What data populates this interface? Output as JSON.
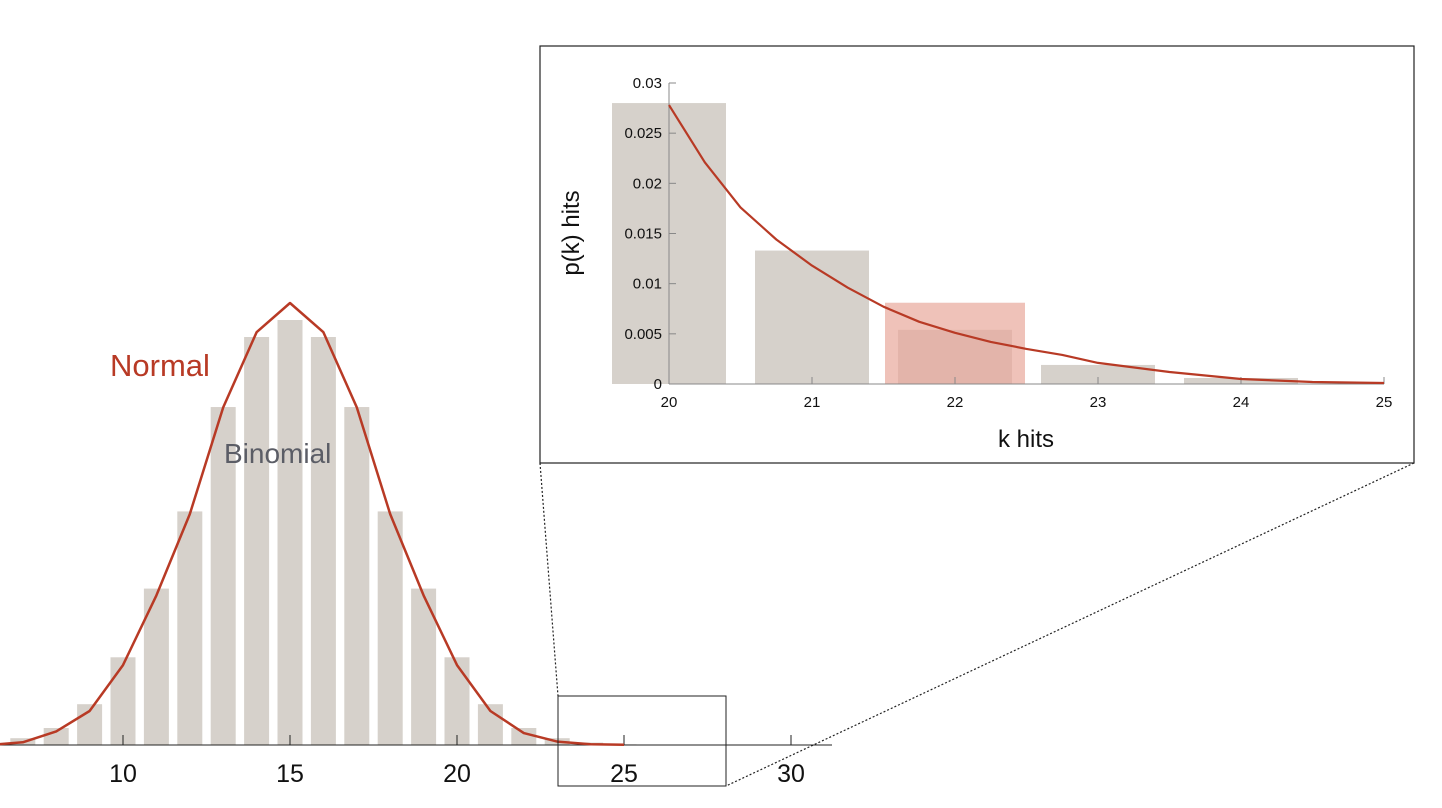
{
  "chart_data": [
    {
      "type": "bar",
      "description_role": "main",
      "x": [
        6,
        7,
        8,
        9,
        10,
        11,
        12,
        13,
        14,
        15,
        16,
        17,
        18,
        19,
        20,
        21,
        22,
        23,
        24,
        25
      ],
      "values": [
        0.0,
        0.002,
        0.005,
        0.012,
        0.0258,
        0.046,
        0.0687,
        0.0994,
        0.12,
        0.125,
        0.12,
        0.0994,
        0.0687,
        0.046,
        0.0258,
        0.012,
        0.005,
        0.002,
        0.0007,
        0.0002
      ],
      "normal_curve": [
        0.0,
        0.0008,
        0.004,
        0.01,
        0.0235,
        0.044,
        0.0679,
        0.0993,
        0.1214,
        0.13,
        0.1214,
        0.0993,
        0.0679,
        0.044,
        0.0235,
        0.01,
        0.0035,
        0.001,
        0.0002,
        0.0001
      ],
      "xticks": [
        10,
        15,
        20,
        25,
        30
      ],
      "xtick_labels": [
        "10",
        "15",
        "20",
        "25",
        "30"
      ],
      "xlim": [
        6,
        31.5
      ],
      "series": [
        {
          "name": "Binomial",
          "color": "#d6d1cb"
        },
        {
          "name": "Normal",
          "color": "#b83a25"
        }
      ],
      "labels": {
        "normal": "Normal",
        "binomial": "Binomial"
      }
    },
    {
      "type": "bar",
      "description_role": "inset",
      "x": [
        20,
        21,
        22,
        23,
        24,
        25
      ],
      "values": [
        0.028,
        0.0133,
        0.0054,
        0.0019,
        0.0006,
        0.0
      ],
      "highlight": {
        "x": 22,
        "value": 0.0081,
        "color": "#e8a89b"
      },
      "normal_curve": {
        "x": [
          20,
          20.25,
          20.5,
          20.75,
          21,
          21.25,
          21.5,
          21.75,
          22,
          22.25,
          22.5,
          22.75,
          23,
          23.5,
          24,
          24.5,
          25
        ],
        "y": [
          0.0278,
          0.0221,
          0.0176,
          0.0144,
          0.0118,
          0.0096,
          0.0077,
          0.0062,
          0.0051,
          0.0042,
          0.0035,
          0.0029,
          0.0021,
          0.0012,
          0.0005,
          0.0002,
          0.0001
        ]
      },
      "xlabel": "k hits",
      "ylabel": "p(k) hits",
      "xlim": [
        20,
        25
      ],
      "ylim": [
        0,
        0.03
      ],
      "xticks": [
        "20",
        "21",
        "22",
        "23",
        "24",
        "25"
      ],
      "yticks": [
        "0",
        "0.005",
        "0.01",
        "0.015",
        "0.02",
        "0.025",
        "0.03"
      ],
      "colors": {
        "bar": "#d6d1cb",
        "curve": "#b83a25"
      }
    }
  ]
}
